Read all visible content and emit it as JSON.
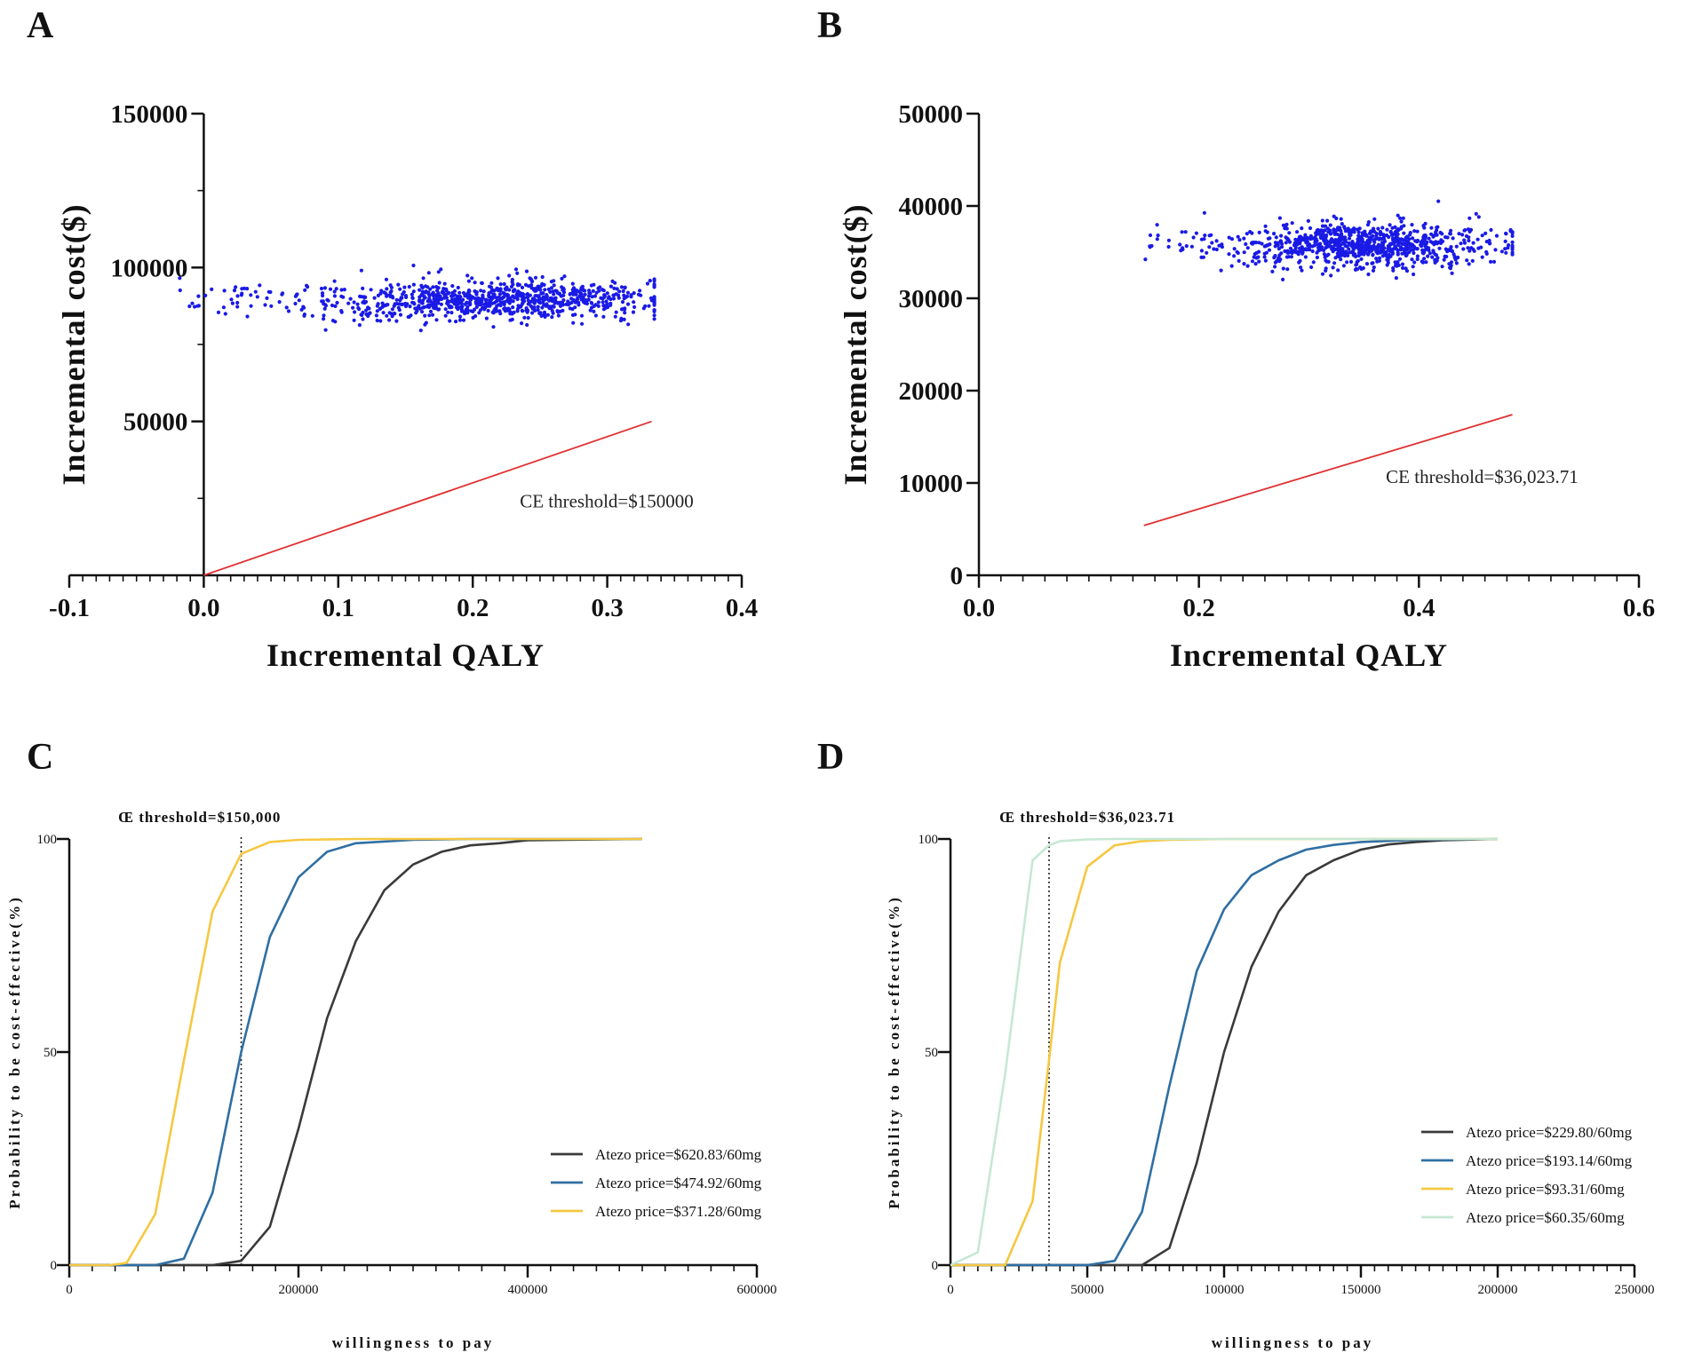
{
  "chart_data": [
    {
      "id": "A",
      "type": "scatter",
      "panel_label": "A",
      "xlabel": "Incremental QALY",
      "ylabel": "Incremental cost($)",
      "xlim": [
        -0.1,
        0.4
      ],
      "ylim": [
        0,
        150000
      ],
      "xticks": [
        -0.1,
        0.0,
        0.1,
        0.2,
        0.3,
        0.4
      ],
      "xtick_labels": [
        "-0.1",
        "0.0",
        "0.1",
        "0.2",
        "0.3",
        "0.4"
      ],
      "yticks": [
        50000,
        100000,
        150000
      ],
      "ytick_labels": [
        "50000",
        "100000",
        "150000"
      ],
      "cloud": {
        "x_range": [
          -0.02,
          0.335
        ],
        "x_center": 0.215,
        "y_center": 89500,
        "y_spread": 3200,
        "count": 900,
        "color": "#1a1ae6"
      },
      "threshold_line": {
        "from": [
          0.0,
          0
        ],
        "to": [
          0.333,
          50000
        ],
        "color": "#e03030"
      },
      "annotation": "CE threshold=$150000",
      "annotation_pos": [
        0.235,
        22000
      ]
    },
    {
      "id": "B",
      "type": "scatter",
      "panel_label": "B",
      "xlabel": "Incremental QALY",
      "ylabel": "Incremental cost($)",
      "xlim": [
        0.0,
        0.6
      ],
      "ylim": [
        0,
        50000
      ],
      "xticks": [
        0.0,
        0.2,
        0.4,
        0.6
      ],
      "xtick_labels": [
        "0.0",
        "0.2",
        "0.4",
        "0.6"
      ],
      "yticks": [
        0,
        10000,
        20000,
        30000,
        40000,
        50000
      ],
      "ytick_labels": [
        "0",
        "10000",
        "20000",
        "30000",
        "40000",
        "50000"
      ],
      "cloud": {
        "x_range": [
          0.15,
          0.485
        ],
        "x_center": 0.35,
        "y_center": 35800,
        "y_spread": 1200,
        "count": 900,
        "color": "#1a1ae6"
      },
      "threshold_line": {
        "from": [
          0.15,
          5400
        ],
        "to": [
          0.485,
          17400
        ],
        "color": "#e03030"
      },
      "annotation": "CE threshold=$36,023.71",
      "annotation_pos": [
        0.37,
        10000
      ]
    },
    {
      "id": "C",
      "type": "line",
      "panel_label": "C",
      "xlabel": "willingness to pay",
      "ylabel": "Probability to be cost-effective(%)",
      "xlim": [
        0,
        600000
      ],
      "ylim": [
        0,
        100
      ],
      "xticks": [
        0,
        200000,
        400000,
        600000
      ],
      "xtick_labels": [
        "0",
        "200000",
        "400000",
        "600000"
      ],
      "yticks": [
        0,
        50,
        100
      ],
      "ytick_labels": [
        "0",
        "50",
        "100"
      ],
      "threshold_x": 150000,
      "threshold_label": "Œ threshold=$150,000",
      "series": [
        {
          "name": "Atezo price=$620.83/60mg",
          "color": "#3a3a3a",
          "x": [
            0,
            125000,
            150000,
            175000,
            200000,
            225000,
            250000,
            275000,
            300000,
            325000,
            350000,
            375000,
            400000,
            500000
          ],
          "y": [
            0,
            0,
            1,
            9,
            32,
            58,
            76,
            88,
            94,
            97,
            98.5,
            99,
            99.7,
            100
          ]
        },
        {
          "name": "Atezo price=$474.92/60mg",
          "color": "#2f6fa3",
          "x": [
            0,
            75000,
            100000,
            125000,
            150000,
            175000,
            200000,
            225000,
            250000,
            300000,
            350000,
            500000
          ],
          "y": [
            0,
            0,
            1.5,
            17,
            50,
            77,
            91,
            97,
            99,
            99.8,
            100,
            100
          ]
        },
        {
          "name": "Atezo price=$371.28/60mg",
          "color": "#f5c842",
          "x": [
            0,
            35000,
            50000,
            75000,
            100000,
            125000,
            150000,
            175000,
            200000,
            250000,
            300000,
            500000
          ],
          "y": [
            0,
            0,
            0.5,
            12,
            48,
            83,
            96.5,
            99.3,
            99.8,
            100,
            100,
            100
          ]
        }
      ]
    },
    {
      "id": "D",
      "type": "line",
      "panel_label": "D",
      "xlabel": "willingness to pay",
      "ylabel": "Probability to be cost-effective(%)",
      "xlim": [
        0,
        250000
      ],
      "ylim": [
        0,
        100
      ],
      "xticks": [
        0,
        50000,
        100000,
        150000,
        200000,
        250000
      ],
      "xtick_labels": [
        "0",
        "50000",
        "100000",
        "150000",
        "200000",
        "250000"
      ],
      "yticks": [
        0,
        50,
        100
      ],
      "ytick_labels": [
        "0",
        "50",
        "100"
      ],
      "threshold_x": 36023.71,
      "threshold_label": "Œ threshold=$36,023.71",
      "series": [
        {
          "name": "Atezo price=$229.80/60mg",
          "color": "#3a3a3a",
          "x": [
            0,
            70000,
            80000,
            90000,
            100000,
            110000,
            120000,
            130000,
            140000,
            150000,
            160000,
            170000,
            180000,
            200000
          ],
          "y": [
            0,
            0,
            4,
            24,
            50,
            70,
            83,
            91.5,
            95,
            97.5,
            98.7,
            99.3,
            99.7,
            100
          ]
        },
        {
          "name": "Atezo price=$193.14/60mg",
          "color": "#2f6fa3",
          "x": [
            0,
            50000,
            60000,
            70000,
            80000,
            90000,
            100000,
            110000,
            120000,
            130000,
            140000,
            150000,
            170000,
            200000
          ],
          "y": [
            0,
            0,
            1,
            12.5,
            42,
            69,
            83.5,
            91.5,
            95,
            97.5,
            98.6,
            99.3,
            99.8,
            100
          ]
        },
        {
          "name": "Atezo price=$93.31/60mg",
          "color": "#f5c842",
          "x": [
            0,
            20000,
            30000,
            36000,
            40000,
            50000,
            60000,
            70000,
            80000,
            100000,
            150000,
            200000
          ],
          "y": [
            0,
            0,
            15,
            48,
            71,
            93.5,
            98.5,
            99.5,
            99.8,
            100,
            100,
            100
          ]
        },
        {
          "name": "Atezo price=$60.35/60mg",
          "color": "#c6e8d4",
          "x": [
            0,
            10000,
            20000,
            30000,
            36000,
            40000,
            50000,
            60000,
            200000
          ],
          "y": [
            0,
            3,
            45,
            95,
            98.5,
            99.5,
            99.9,
            100,
            100
          ]
        }
      ]
    }
  ]
}
